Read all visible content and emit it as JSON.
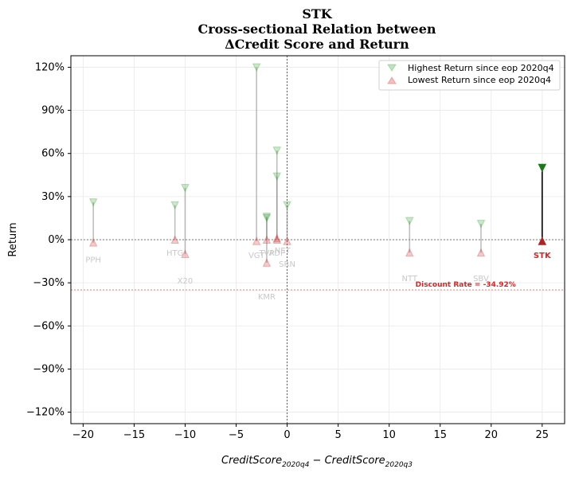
{
  "chart_data": {
    "type": "scatter",
    "title_lines": [
      "STK",
      "Cross-sectional Relation between",
      "ΔCredit Score and Return"
    ],
    "xlabel": "CreditScore_2020q4 − CreditScore_2020q3",
    "ylabel": "Return",
    "xlim": [
      -21.2,
      27.2
    ],
    "ylim": [
      -1.28,
      1.28
    ],
    "x_ticks": [
      -20,
      -15,
      -10,
      -5,
      0,
      5,
      10,
      15,
      20,
      25
    ],
    "x_tick_labels": [
      "−20",
      "−15",
      "−10",
      "−5",
      "0",
      "5",
      "10",
      "15",
      "20",
      "25"
    ],
    "y_ticks": [
      -1.2,
      -0.9,
      -0.6,
      -0.3,
      0,
      0.3,
      0.6,
      0.9,
      1.2
    ],
    "y_tick_labels": [
      "−120%",
      "−90%",
      "−60%",
      "−30%",
      "0%",
      "30%",
      "60%",
      "90%",
      "120%"
    ],
    "grid": true,
    "legend_position": "top-right",
    "legend": [
      {
        "label": "Highest Return since eop 2020q4",
        "marker": "triangle-down",
        "color": "#2ca02c"
      },
      {
        "label": "Lowest Return since eop 2020q4",
        "marker": "triangle-up",
        "color": "#d62728"
      }
    ],
    "discount_rate": {
      "value": -0.3492,
      "label": "Discount Rate = -34.92%"
    },
    "focus": {
      "ticker": "STK",
      "x": 25,
      "high": 0.5,
      "low": -0.01
    },
    "points": [
      {
        "ticker": "PPH",
        "x": -19,
        "high": 0.26,
        "low": -0.02
      },
      {
        "ticker": "HTG",
        "x": -11,
        "high": 0.24,
        "low": 0.0
      },
      {
        "ticker": "X20",
        "x": -10,
        "high": 0.36,
        "low": -0.1
      },
      {
        "ticker": "VGT",
        "x": -3,
        "high": 1.2,
        "low": -0.01
      },
      {
        "ticker": "KMR",
        "x": -2,
        "high": 0.16,
        "low": -0.16
      },
      {
        "ticker": "TVP",
        "x": -2,
        "high": 0.15,
        "low": 0.0
      },
      {
        "ticker": "ADP",
        "x": -1,
        "high": 0.62,
        "low": 0.0
      },
      {
        "ticker": "NET",
        "x": -1,
        "high": 0.44,
        "low": 0.01
      },
      {
        "ticker": "SRN",
        "x": 0,
        "high": 0.24,
        "low": -0.01
      },
      {
        "ticker": "NTT",
        "x": 12,
        "high": 0.13,
        "low": -0.09
      },
      {
        "ticker": "SBV",
        "x": 19,
        "high": 0.11,
        "low": -0.09
      }
    ]
  }
}
